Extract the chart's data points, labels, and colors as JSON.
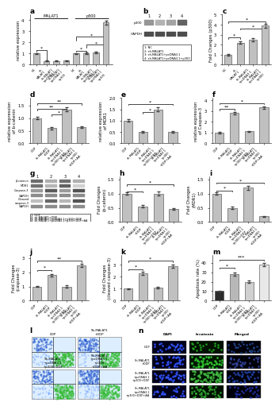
{
  "panel_a": {
    "values": [
      1.0,
      0.35,
      0.35,
      0.38,
      1.0,
      1.05,
      1.1,
      3.8
    ],
    "errors": [
      0.06,
      0.03,
      0.03,
      0.03,
      0.06,
      0.07,
      0.08,
      0.18
    ],
    "xlabels": [
      "NC",
      "sh-\nMALAT1",
      "sh-MALAT1\n+pcDNA3.1",
      "sh-MALAT1\n+pcDNA3.1\n+p300",
      "NC",
      "sh-\nMALAT1",
      "sh-MALAT1\n+pcDNA3.1",
      "sh-MALAT1\n+pcDNA3.1\n+p300"
    ],
    "ylabel": "relative expression",
    "ylim": [
      0,
      4.5
    ],
    "group_labels": [
      "MALAT1",
      "p300"
    ]
  },
  "panel_c": {
    "values": [
      1.0,
      2.2,
      2.5,
      3.9
    ],
    "errors": [
      0.06,
      0.12,
      0.12,
      0.18
    ],
    "xlabels": [
      "NC",
      "sh-\nMALAT1",
      "sh-MALAT1\n+pcDNA3.1",
      "sh-MALAT1\n+pcDNA3.1\n+p300"
    ],
    "ylabel": "Fold Changes (p300)",
    "ylim": [
      0,
      5.0
    ]
  },
  "panel_d": {
    "values": [
      1.0,
      0.6,
      1.35,
      0.65
    ],
    "errors": [
      0.05,
      0.04,
      0.07,
      0.04
    ],
    "xlabels": [
      "DDP",
      "sh-MALAT1\n+DDP",
      "sh-MALAT1\n+pcDNA3.1\n+p300+DDP",
      "sh-MALAT1\n+pcDNA3.1\n+p300\n+DDP+AA"
    ],
    "ylabel": "relative expression\nof b-catenin",
    "ylim": [
      0,
      1.8
    ]
  },
  "panel_e": {
    "values": [
      1.0,
      0.5,
      1.5,
      0.5
    ],
    "errors": [
      0.05,
      0.04,
      0.08,
      0.04
    ],
    "xlabels": [
      "DDP",
      "sh-MALAT1\n+DDP",
      "sh-MALAT1\n+pcDNA3.1\n+p300+DDP",
      "sh-MALAT1\n+pcDNA3.1\n+p300\n+DDP+AA"
    ],
    "ylabel": "relative expression\nof MDR1",
    "ylim": [
      0,
      2.0
    ]
  },
  "panel_f": {
    "values": [
      1.0,
      2.8,
      1.1,
      3.3
    ],
    "errors": [
      0.05,
      0.12,
      0.06,
      0.14
    ],
    "xlabels": [
      "DDP",
      "sh-MALAT1\n+DDP",
      "sh-MALAT1\n+pcDNA3.1\n+p300+DDP",
      "sh-MALAT1\n+pcDNA3.1\n+p300\n+DDP+AA"
    ],
    "ylabel": "relative expression\nof Caspase-3",
    "ylim": [
      0,
      4.2
    ]
  },
  "panel_h": {
    "values": [
      1.0,
      0.55,
      1.0,
      0.45
    ],
    "errors": [
      0.05,
      0.04,
      0.06,
      0.03
    ],
    "xlabels": [
      "DDP",
      "sh-MALAT1\n+DDP",
      "sh-MALAT1\n+pcDNA3.1\n+p300+DDP",
      "sh-MALAT1\n+pcDNA3.1\n+p300\n+DDP+AA"
    ],
    "ylabel": "Fold Changes\n(b-catenin)",
    "ylim": [
      0,
      1.6
    ]
  },
  "panel_i": {
    "values": [
      1.0,
      0.5,
      1.2,
      0.2
    ],
    "errors": [
      0.05,
      0.04,
      0.07,
      0.02
    ],
    "xlabels": [
      "DDP",
      "sh-MALAT1\n+DDP",
      "sh-MALAT1\n+pcDNA3.1\n+p300+DDP",
      "sh-MALAT1\n+pcDNA3.1\n+p300\n+DDP+AA"
    ],
    "ylabel": "Fold Changes\n(MDR1)",
    "ylim": [
      0,
      1.6
    ]
  },
  "panel_j": {
    "values": [
      1.0,
      1.8,
      1.0,
      2.5
    ],
    "errors": [
      0.05,
      0.09,
      0.06,
      0.12
    ],
    "xlabels": [
      "DDP",
      "sh-MALAT1\n+DDP",
      "sh-MALAT1\n+pcDNA3.1\n+p300+DDP",
      "sh-MALAT1\n+pcDNA3.1\n+p300\n+DDP+AA"
    ],
    "ylabel": "Fold Changes\n(caspase-3)",
    "ylim": [
      0,
      3.2
    ]
  },
  "panel_k": {
    "values": [
      1.0,
      2.3,
      1.1,
      2.9
    ],
    "errors": [
      0.05,
      0.12,
      0.06,
      0.14
    ],
    "xlabels": [
      "DDP",
      "sh-MALAT1\n+DDP",
      "sh-MALAT1\n+pcDNA3.1\n+p300+DDP",
      "sh-MALAT1\n+pcDNA3.1\n+p300\n+DDP+AA"
    ],
    "ylabel": "Fold Changes\n(cleaved caspase-3)",
    "ylim": [
      0,
      3.8
    ]
  },
  "panel_m": {
    "values": [
      10.0,
      28.0,
      20.0,
      38.0
    ],
    "errors": [
      0.5,
      1.5,
      1.2,
      2.0
    ],
    "xlabels": [
      "DDP",
      "sh-MALAT1\n+DDP",
      "sh-MALAT1\n+pcDNA3.1\n+p300+DDP",
      "sh-MALAT1\n+pcDNA3.1\n+p300\n+DDP+AA"
    ],
    "ylabel": "Apoptosis rate (%)",
    "ylim": [
      0,
      48
    ],
    "bar_colors": [
      "#2c2c2c",
      "#b8b8b8",
      "#d0d0d0",
      "#e8e8e8"
    ]
  },
  "bar_color": "#c0c0c0",
  "bar_edge": "#404040",
  "err_color": "#404040",
  "flow_labels_top": [
    "DDP",
    "Sh-MALAT1\n+DDP"
  ],
  "flow_labels_bot": [
    "Sh-MALAT1\n+pcDNA3.1\n+p300+DDP",
    "Sh-MALAT1\n+pcDNA3.1\n+p300\n+DDP+AA"
  ],
  "if_row_labels": [
    "DDP",
    "Sh-MALAT1\n+DDP",
    "Sh-MALAT1\n+pcDNA3.1\n+p300+DDP",
    "Sh-MALAT1\n+pcDNA3.1\n+p300+DDP+AA"
  ],
  "if_col_labels": [
    "DAPI",
    "b-catenin",
    "Merged"
  ]
}
